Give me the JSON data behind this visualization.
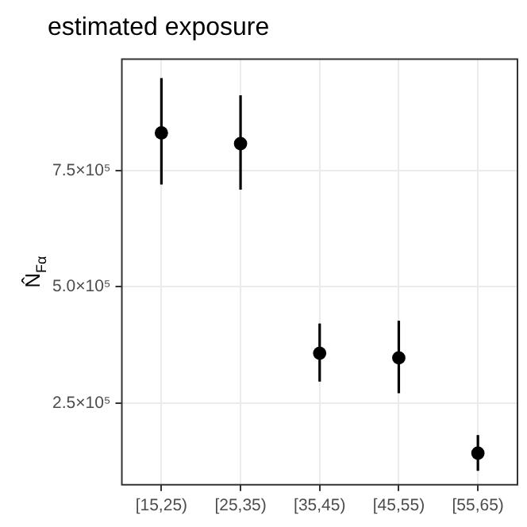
{
  "chart_data": {
    "type": "scatter",
    "title": "estimated exposure",
    "ylabel": "N̂$_{Fα}$",
    "categories": [
      "[15,25)",
      "[25,35)",
      "[35,45)",
      "[45,55)",
      "[55,65)"
    ],
    "values": [
      831000,
      808000,
      357000,
      347000,
      142000
    ],
    "errors": [
      [
        720000,
        949000
      ],
      [
        709000,
        912000
      ],
      [
        296000,
        421000
      ],
      [
        271000,
        427000
      ],
      [
        104000,
        181000
      ]
    ],
    "color": "#000000",
    "marker": "circle",
    "grid": true,
    "ylim": [
      74000,
      990000
    ],
    "yticks": [
      {
        "value": 250000,
        "label": "2.5×10⁵"
      },
      {
        "value": 500000,
        "label": "5.0×10⁵"
      },
      {
        "value": 750000,
        "label": "7.5×10⁵"
      }
    ]
  }
}
